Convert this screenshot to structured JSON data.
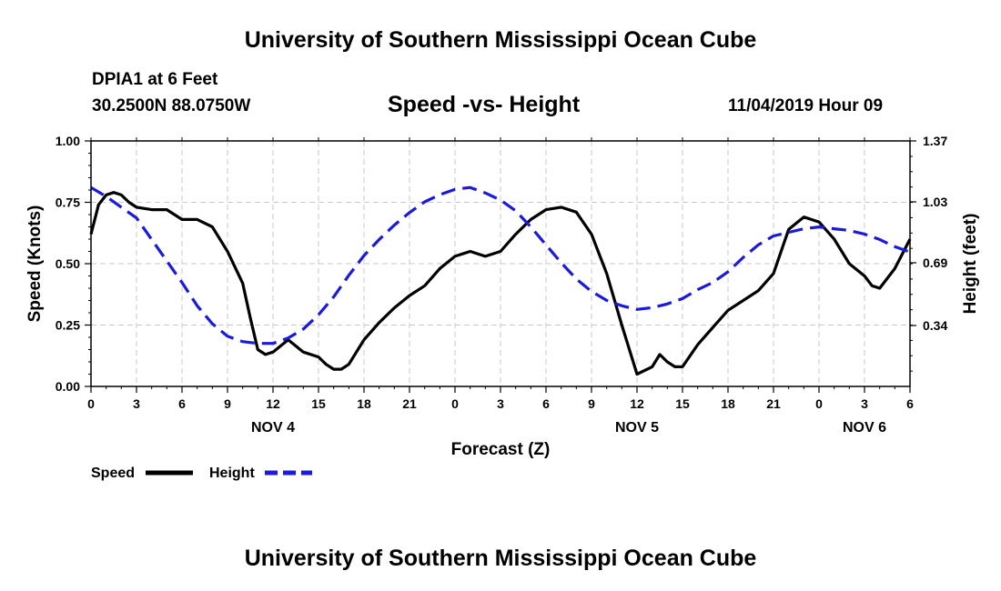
{
  "header": {
    "title": "University of Southern Mississippi Ocean Cube",
    "station": "DPIA1 at 6 Feet",
    "coords": "30.2500N 88.0750W",
    "datetime": "11/04/2019 Hour 09"
  },
  "footer": {
    "title": "University of Southern Mississippi Ocean Cube"
  },
  "colors": {
    "speed": "#000000",
    "height": "#1a1adc",
    "grid": "#c8c8c8"
  },
  "chart_data": {
    "type": "line",
    "title": "Speed -vs- Height",
    "xlabel": "Forecast (Z)",
    "ylabel": "Speed (Knots)",
    "y2label": "Height (feet)",
    "xlim": [
      0,
      54
    ],
    "ylim": [
      0,
      1.0
    ],
    "y2lim": [
      0,
      1.37
    ],
    "x_ticks": [
      0,
      3,
      6,
      9,
      12,
      15,
      18,
      21,
      24,
      27,
      30,
      33,
      36,
      39,
      42,
      45,
      48,
      51,
      54
    ],
    "x_tick_labels": [
      "0",
      "3",
      "6",
      "9",
      "12",
      "15",
      "18",
      "21",
      "0",
      "3",
      "6",
      "9",
      "12",
      "15",
      "18",
      "21",
      "0",
      "3",
      "6"
    ],
    "y_ticks": [
      0.0,
      0.25,
      0.5,
      0.75,
      1.0
    ],
    "y_tick_labels": [
      "0.00",
      "0.25",
      "0.50",
      "0.75",
      "1.00"
    ],
    "y2_ticks": [
      0.34,
      0.69,
      1.03,
      1.37
    ],
    "y2_tick_labels": [
      "0.34",
      "0.69",
      "1.03",
      "1.37"
    ],
    "date_labels": [
      {
        "x": 12,
        "label": "NOV 4"
      },
      {
        "x": 36,
        "label": "NOV 5"
      },
      {
        "x": 51,
        "label": "NOV 6"
      }
    ],
    "grid": true,
    "legend_position": "bottom-left",
    "series": [
      {
        "name": "Speed",
        "axis": "left",
        "style": "solid",
        "x": [
          0,
          0.5,
          1,
          1.5,
          2,
          2.5,
          3,
          4,
          5,
          6,
          7,
          8,
          9,
          10,
          10.5,
          11,
          11.5,
          12,
          13,
          14,
          15,
          15.5,
          16,
          16.5,
          17,
          18,
          19,
          20,
          21,
          22,
          23,
          24,
          25,
          26,
          27,
          28,
          29,
          30,
          31,
          32,
          33,
          34,
          35,
          36,
          37,
          37.5,
          38,
          38.5,
          39,
          40,
          41,
          42,
          43,
          44,
          45,
          46,
          47,
          48,
          49,
          50,
          51,
          51.5,
          52,
          53,
          54
        ],
        "values": [
          0.62,
          0.74,
          0.78,
          0.79,
          0.78,
          0.75,
          0.73,
          0.72,
          0.72,
          0.68,
          0.68,
          0.65,
          0.55,
          0.42,
          0.28,
          0.15,
          0.13,
          0.14,
          0.19,
          0.14,
          0.12,
          0.09,
          0.07,
          0.07,
          0.09,
          0.19,
          0.26,
          0.32,
          0.37,
          0.41,
          0.48,
          0.53,
          0.55,
          0.53,
          0.55,
          0.62,
          0.68,
          0.72,
          0.73,
          0.71,
          0.62,
          0.46,
          0.25,
          0.05,
          0.08,
          0.13,
          0.1,
          0.08,
          0.08,
          0.17,
          0.24,
          0.31,
          0.35,
          0.39,
          0.46,
          0.64,
          0.69,
          0.67,
          0.6,
          0.5,
          0.45,
          0.41,
          0.4,
          0.48,
          0.6
        ]
      },
      {
        "name": "Height",
        "axis": "right",
        "style": "dashed",
        "x": [
          0,
          1,
          2,
          3,
          4,
          5,
          6,
          7,
          8,
          9,
          10,
          11,
          12,
          13,
          14,
          15,
          16,
          17,
          18,
          19,
          20,
          21,
          22,
          23,
          24,
          25,
          26,
          27,
          28,
          29,
          30,
          31,
          32,
          33,
          34,
          35,
          36,
          37,
          38,
          39,
          40,
          41,
          42,
          43,
          44,
          45,
          46,
          47,
          48,
          49,
          50,
          51,
          52,
          53,
          54
        ],
        "values": [
          1.11,
          1.06,
          1.0,
          0.94,
          0.82,
          0.7,
          0.58,
          0.45,
          0.35,
          0.28,
          0.25,
          0.24,
          0.24,
          0.27,
          0.32,
          0.4,
          0.5,
          0.62,
          0.73,
          0.82,
          0.9,
          0.97,
          1.03,
          1.07,
          1.1,
          1.11,
          1.08,
          1.04,
          0.98,
          0.89,
          0.79,
          0.69,
          0.6,
          0.53,
          0.48,
          0.45,
          0.43,
          0.44,
          0.46,
          0.49,
          0.54,
          0.58,
          0.64,
          0.72,
          0.79,
          0.84,
          0.86,
          0.88,
          0.89,
          0.88,
          0.87,
          0.85,
          0.82,
          0.78,
          0.75
        ]
      }
    ]
  }
}
